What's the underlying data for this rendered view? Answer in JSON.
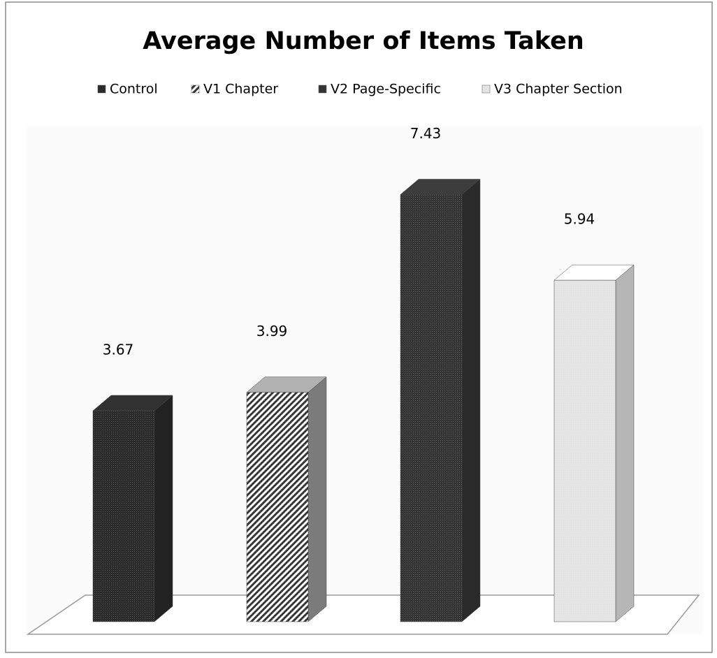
{
  "chart_data": {
    "type": "bar",
    "title": "Average Number of Items Taken",
    "categories": [
      null
    ],
    "series": [
      {
        "name": "Control",
        "color": "#2b2b2b",
        "values": [
          3.67
        ]
      },
      {
        "name": "V1 Chapter",
        "color": "#9a9a9a",
        "values": [
          3.99
        ]
      },
      {
        "name": "V2 Page-Specific",
        "color": "#353535",
        "values": [
          7.43
        ]
      },
      {
        "name": "V3 Chapter Section",
        "color": "#e4e4e4",
        "values": [
          5.94
        ]
      }
    ],
    "legend": "top"
  }
}
